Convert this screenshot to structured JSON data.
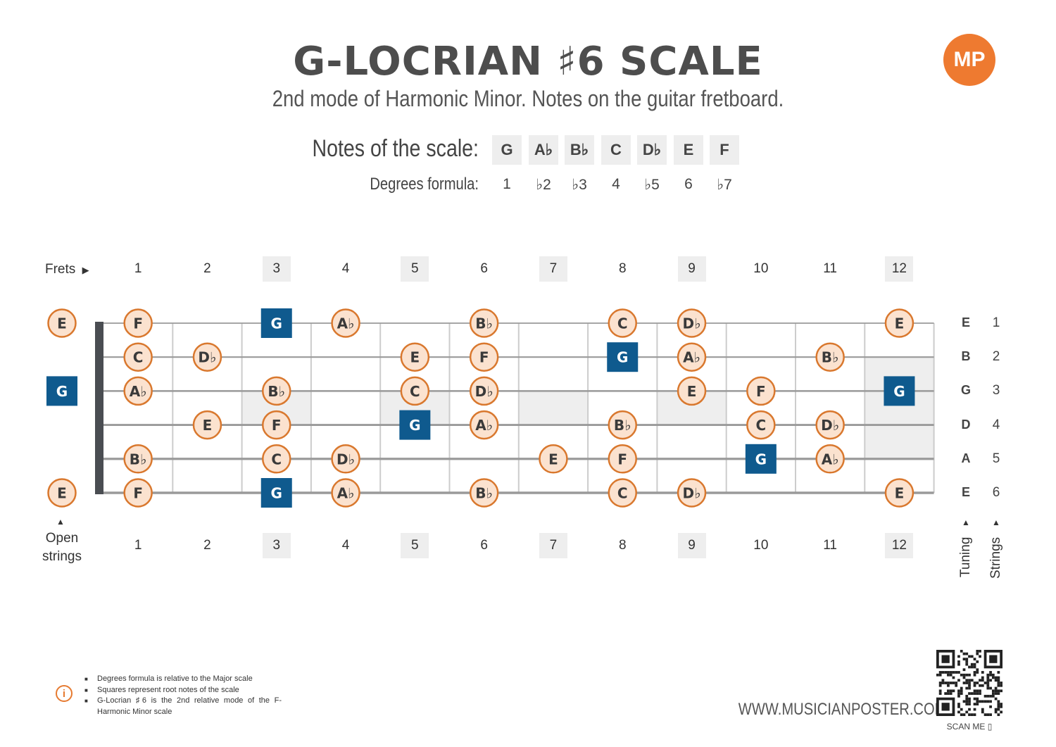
{
  "title": "G-LOCRIAN ♯6 SCALE",
  "subtitle": "2nd mode of Harmonic Minor. Notes on the guitar fretboard.",
  "logo": "MP",
  "scale": {
    "label": "Notes of the scale:",
    "notes": [
      "G",
      "A♭",
      "B♭",
      "C",
      "D♭",
      "E",
      "F"
    ],
    "degrees_label": "Degrees formula:",
    "degrees": [
      "1",
      "♭2",
      "♭3",
      "4",
      "♭5",
      "6",
      "♭7"
    ]
  },
  "fretboard": {
    "frets_label": "Frets",
    "fret_numbers": [
      "1",
      "2",
      "3",
      "4",
      "5",
      "6",
      "7",
      "8",
      "9",
      "10",
      "11",
      "12"
    ],
    "highlighted_frets": [
      "3",
      "5",
      "7",
      "9",
      "12"
    ],
    "open_label_line1": "Open",
    "open_label_line2": "strings",
    "tuning_label": "Tuning",
    "strings_label": "Strings",
    "tuning": [
      "E",
      "B",
      "G",
      "D",
      "A",
      "E"
    ],
    "string_numbers": [
      "1",
      "2",
      "3",
      "4",
      "5",
      "6"
    ],
    "root_note": "G",
    "positions": [
      {
        "string": 1,
        "fret": 0,
        "note": "E"
      },
      {
        "string": 1,
        "fret": 1,
        "note": "F"
      },
      {
        "string": 1,
        "fret": 3,
        "note": "G"
      },
      {
        "string": 1,
        "fret": 4,
        "note": "A♭"
      },
      {
        "string": 1,
        "fret": 6,
        "note": "B♭"
      },
      {
        "string": 1,
        "fret": 8,
        "note": "C"
      },
      {
        "string": 1,
        "fret": 9,
        "note": "D♭"
      },
      {
        "string": 1,
        "fret": 12,
        "note": "E"
      },
      {
        "string": 2,
        "fret": 1,
        "note": "C"
      },
      {
        "string": 2,
        "fret": 2,
        "note": "D♭"
      },
      {
        "string": 2,
        "fret": 5,
        "note": "E"
      },
      {
        "string": 2,
        "fret": 6,
        "note": "F"
      },
      {
        "string": 2,
        "fret": 8,
        "note": "G"
      },
      {
        "string": 2,
        "fret": 9,
        "note": "A♭"
      },
      {
        "string": 2,
        "fret": 11,
        "note": "B♭"
      },
      {
        "string": 3,
        "fret": 0,
        "note": "G"
      },
      {
        "string": 3,
        "fret": 1,
        "note": "A♭"
      },
      {
        "string": 3,
        "fret": 3,
        "note": "B♭"
      },
      {
        "string": 3,
        "fret": 5,
        "note": "C"
      },
      {
        "string": 3,
        "fret": 6,
        "note": "D♭"
      },
      {
        "string": 3,
        "fret": 9,
        "note": "E"
      },
      {
        "string": 3,
        "fret": 10,
        "note": "F"
      },
      {
        "string": 3,
        "fret": 12,
        "note": "G"
      },
      {
        "string": 4,
        "fret": 2,
        "note": "E"
      },
      {
        "string": 4,
        "fret": 3,
        "note": "F"
      },
      {
        "string": 4,
        "fret": 5,
        "note": "G"
      },
      {
        "string": 4,
        "fret": 6,
        "note": "A♭"
      },
      {
        "string": 4,
        "fret": 8,
        "note": "B♭"
      },
      {
        "string": 4,
        "fret": 10,
        "note": "C"
      },
      {
        "string": 4,
        "fret": 11,
        "note": "D♭"
      },
      {
        "string": 5,
        "fret": 1,
        "note": "B♭"
      },
      {
        "string": 5,
        "fret": 3,
        "note": "C"
      },
      {
        "string": 5,
        "fret": 4,
        "note": "D♭"
      },
      {
        "string": 5,
        "fret": 7,
        "note": "E"
      },
      {
        "string": 5,
        "fret": 8,
        "note": "F"
      },
      {
        "string": 5,
        "fret": 10,
        "note": "G"
      },
      {
        "string": 5,
        "fret": 11,
        "note": "A♭"
      },
      {
        "string": 6,
        "fret": 0,
        "note": "E"
      },
      {
        "string": 6,
        "fret": 1,
        "note": "F"
      },
      {
        "string": 6,
        "fret": 3,
        "note": "G"
      },
      {
        "string": 6,
        "fret": 4,
        "note": "A♭"
      },
      {
        "string": 6,
        "fret": 6,
        "note": "B♭"
      },
      {
        "string": 6,
        "fret": 8,
        "note": "C"
      },
      {
        "string": 6,
        "fret": 9,
        "note": "D♭"
      },
      {
        "string": 6,
        "fret": 12,
        "note": "E"
      }
    ]
  },
  "footnotes": [
    "Degrees formula is relative to the Major scale",
    "Squares represent root notes of the scale",
    "G-Locrian ♯6 is the 2nd relative mode of the F-Harmonic Minor scale"
  ],
  "website": "WWW.MUSICIANPOSTER.COM",
  "scan_label": "SCAN ME",
  "colors": {
    "note_fill": "#fbe2cf",
    "note_stroke": "#d9782e",
    "root_fill": "#0f5a8e",
    "accent": "#ee7a30",
    "inlay": "#eeeeee"
  }
}
